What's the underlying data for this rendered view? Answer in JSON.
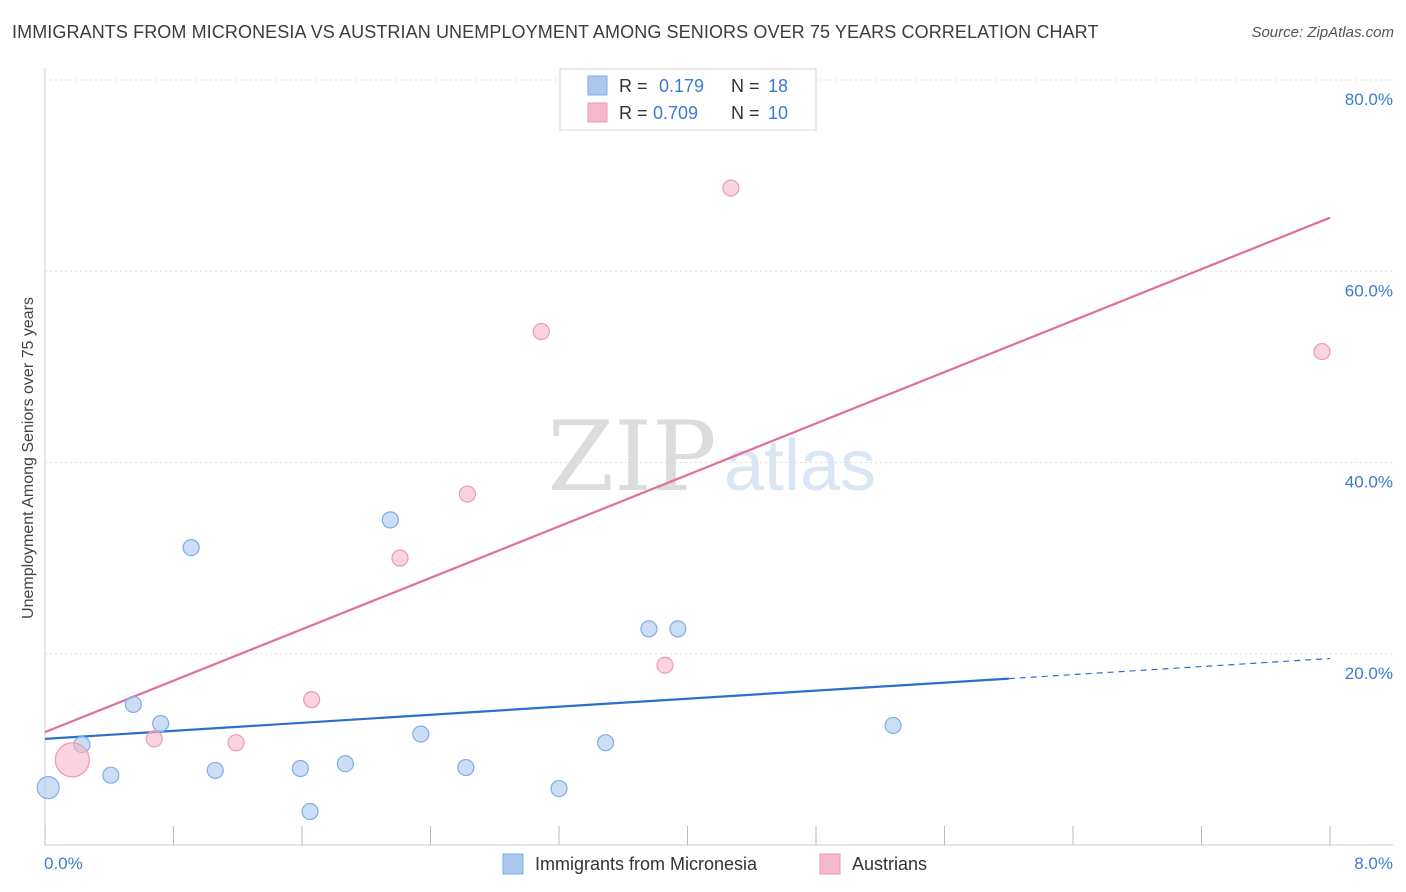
{
  "title": "IMMIGRANTS FROM MICRONESIA VS AUSTRIAN UNEMPLOYMENT AMONG SENIORS OVER 75 YEARS CORRELATION CHART",
  "source": "Source: ZipAtlas.com",
  "watermark": {
    "zip": "ZIP",
    "atlas": "atlas"
  },
  "legend_top": [
    {
      "r_label": "R =",
      "r_value": "0.179",
      "n_label": "N =",
      "n_value": "18",
      "color": "#aac8f0"
    },
    {
      "r_label": "R =",
      "r_value": "0.709",
      "n_label": "N =",
      "n_value": "10",
      "color": "#f5b8cb"
    }
  ],
  "chart_data": {
    "type": "scatter",
    "ylabel": "Unemployment Among Seniors over 75 years",
    "xlim": [
      0,
      8
    ],
    "ylim": [
      0,
      80
    ],
    "x_tick_labels": {
      "left": "0.0%",
      "right": "8.0%"
    },
    "y_tick_labels": [
      "20.0%",
      "40.0%",
      "60.0%",
      "80.0%"
    ],
    "y_ticks": [
      20,
      40,
      60,
      80
    ],
    "x_ticks": [
      0,
      0.8,
      1.6,
      2.4,
      3.2,
      4.0,
      4.8,
      5.6,
      6.4,
      7.2,
      8.0
    ],
    "series": [
      {
        "name": "Immigrants from Micronesia",
        "color": "#aac8f0",
        "stroke": "#7eaee6",
        "line_color": "#2a6fc9",
        "points": [
          {
            "x": 0.02,
            "y": 6.0,
            "big": true
          },
          {
            "x": 0.23,
            "y": 10.5
          },
          {
            "x": 0.41,
            "y": 7.3
          },
          {
            "x": 0.55,
            "y": 14.7
          },
          {
            "x": 0.72,
            "y": 12.7
          },
          {
            "x": 0.91,
            "y": 31.1
          },
          {
            "x": 1.06,
            "y": 7.8
          },
          {
            "x": 1.59,
            "y": 8.0
          },
          {
            "x": 1.65,
            "y": 3.5
          },
          {
            "x": 1.87,
            "y": 8.5
          },
          {
            "x": 2.15,
            "y": 34.0
          },
          {
            "x": 2.34,
            "y": 11.6
          },
          {
            "x": 2.62,
            "y": 8.1
          },
          {
            "x": 3.2,
            "y": 5.9
          },
          {
            "x": 3.49,
            "y": 10.7
          },
          {
            "x": 3.76,
            "y": 22.6
          },
          {
            "x": 3.94,
            "y": 22.6
          },
          {
            "x": 5.28,
            "y": 12.5
          }
        ],
        "trend": {
          "x0": 0.0,
          "y0": 11.1,
          "x1": 6.0,
          "y1": 17.4,
          "dash_x1": 8.0,
          "dash_y1": 19.5
        }
      },
      {
        "name": "Austrians",
        "color": "#f5b8cb",
        "stroke": "#ee9ab5",
        "line_color": "#e06f97",
        "points": [
          {
            "x": 0.17,
            "y": 8.9,
            "big": true
          },
          {
            "x": 0.68,
            "y": 11.1
          },
          {
            "x": 1.19,
            "y": 10.7
          },
          {
            "x": 1.66,
            "y": 15.2
          },
          {
            "x": 2.21,
            "y": 30.0
          },
          {
            "x": 2.63,
            "y": 36.7
          },
          {
            "x": 3.09,
            "y": 53.7
          },
          {
            "x": 3.86,
            "y": 18.8
          },
          {
            "x": 4.27,
            "y": 68.7
          },
          {
            "x": 7.95,
            "y": 51.6
          }
        ],
        "trend": {
          "x0": 0.0,
          "y0": 11.8,
          "x1": 8.0,
          "y1": 65.6
        }
      }
    ]
  }
}
